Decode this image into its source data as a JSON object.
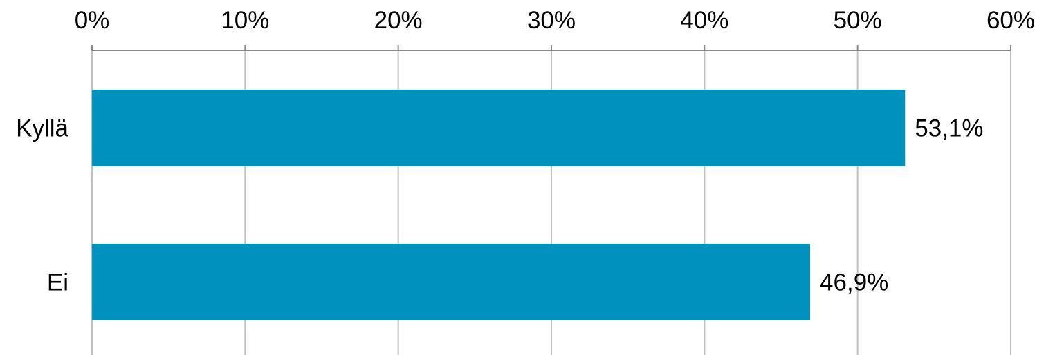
{
  "chart_data": {
    "type": "bar",
    "orientation": "horizontal",
    "categories": [
      "Kyllä",
      "Ei"
    ],
    "values": [
      53.1,
      46.9
    ],
    "data_labels": [
      "53,1%",
      "46,9%"
    ],
    "xlim": [
      0,
      60
    ],
    "x_ticks": [
      0,
      10,
      20,
      30,
      40,
      50,
      60
    ],
    "x_tick_labels": [
      "0%",
      "10%",
      "20%",
      "30%",
      "40%",
      "50%",
      "60%"
    ],
    "x_axis_position": "top",
    "grid": true,
    "legend": "none",
    "title": "",
    "xlabel": "",
    "ylabel": "",
    "colors": {
      "bar": "#0092BF",
      "grid": "#BFBFBF",
      "axis": "#888888"
    }
  }
}
